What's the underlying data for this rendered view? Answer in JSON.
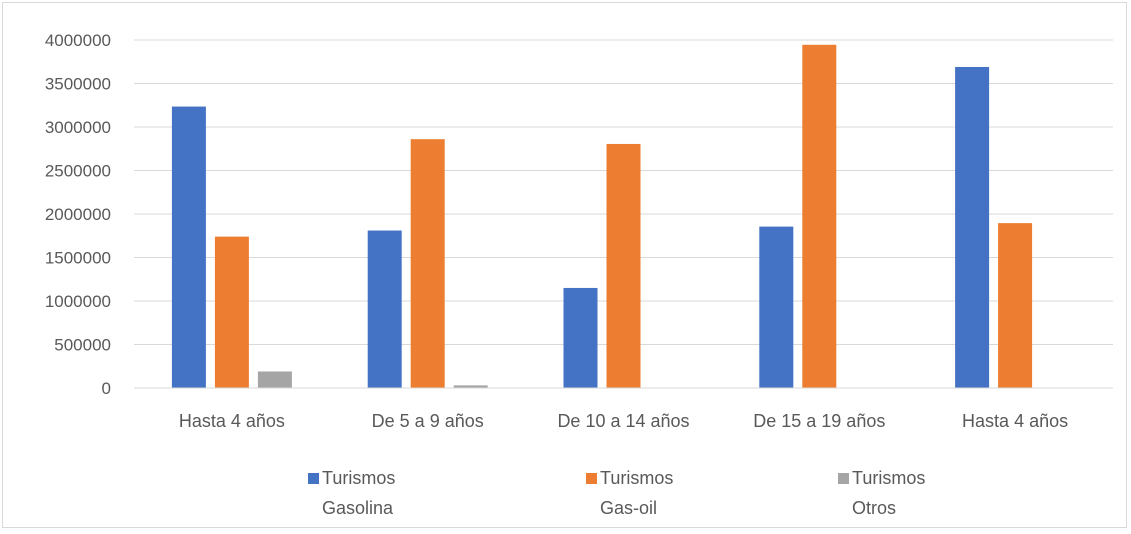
{
  "chart_data": {
    "type": "bar",
    "title": "",
    "xlabel": "",
    "ylabel": "",
    "categories": [
      "Hasta 4 años",
      "De 5 a 9 años",
      "De 10 a 14 años",
      "De 15 a 19 años",
      "Hasta 4 años"
    ],
    "series": [
      {
        "name": "Turismos Gasolina",
        "name_lines": [
          "Turismos",
          "Gasolina"
        ],
        "color": "#4472C4",
        "values": [
          3235000,
          1810000,
          1150000,
          1855000,
          3690000
        ]
      },
      {
        "name": "Turismos Gas-oil",
        "name_lines": [
          "Turismos",
          "Gas-oil"
        ],
        "color": "#ED7D31",
        "values": [
          1740000,
          2860000,
          2805000,
          3945000,
          1895000
        ]
      },
      {
        "name": "Turismos Otros",
        "name_lines": [
          "Turismos",
          "Otros"
        ],
        "color": "#A5A5A5",
        "values": [
          190000,
          30000,
          0,
          0,
          0
        ]
      }
    ],
    "ylim": [
      0,
      4000000
    ],
    "yticks": [
      0,
      500000,
      1000000,
      1500000,
      2000000,
      2500000,
      3000000,
      3500000,
      4000000
    ],
    "grid": true,
    "legend": "bottom"
  }
}
